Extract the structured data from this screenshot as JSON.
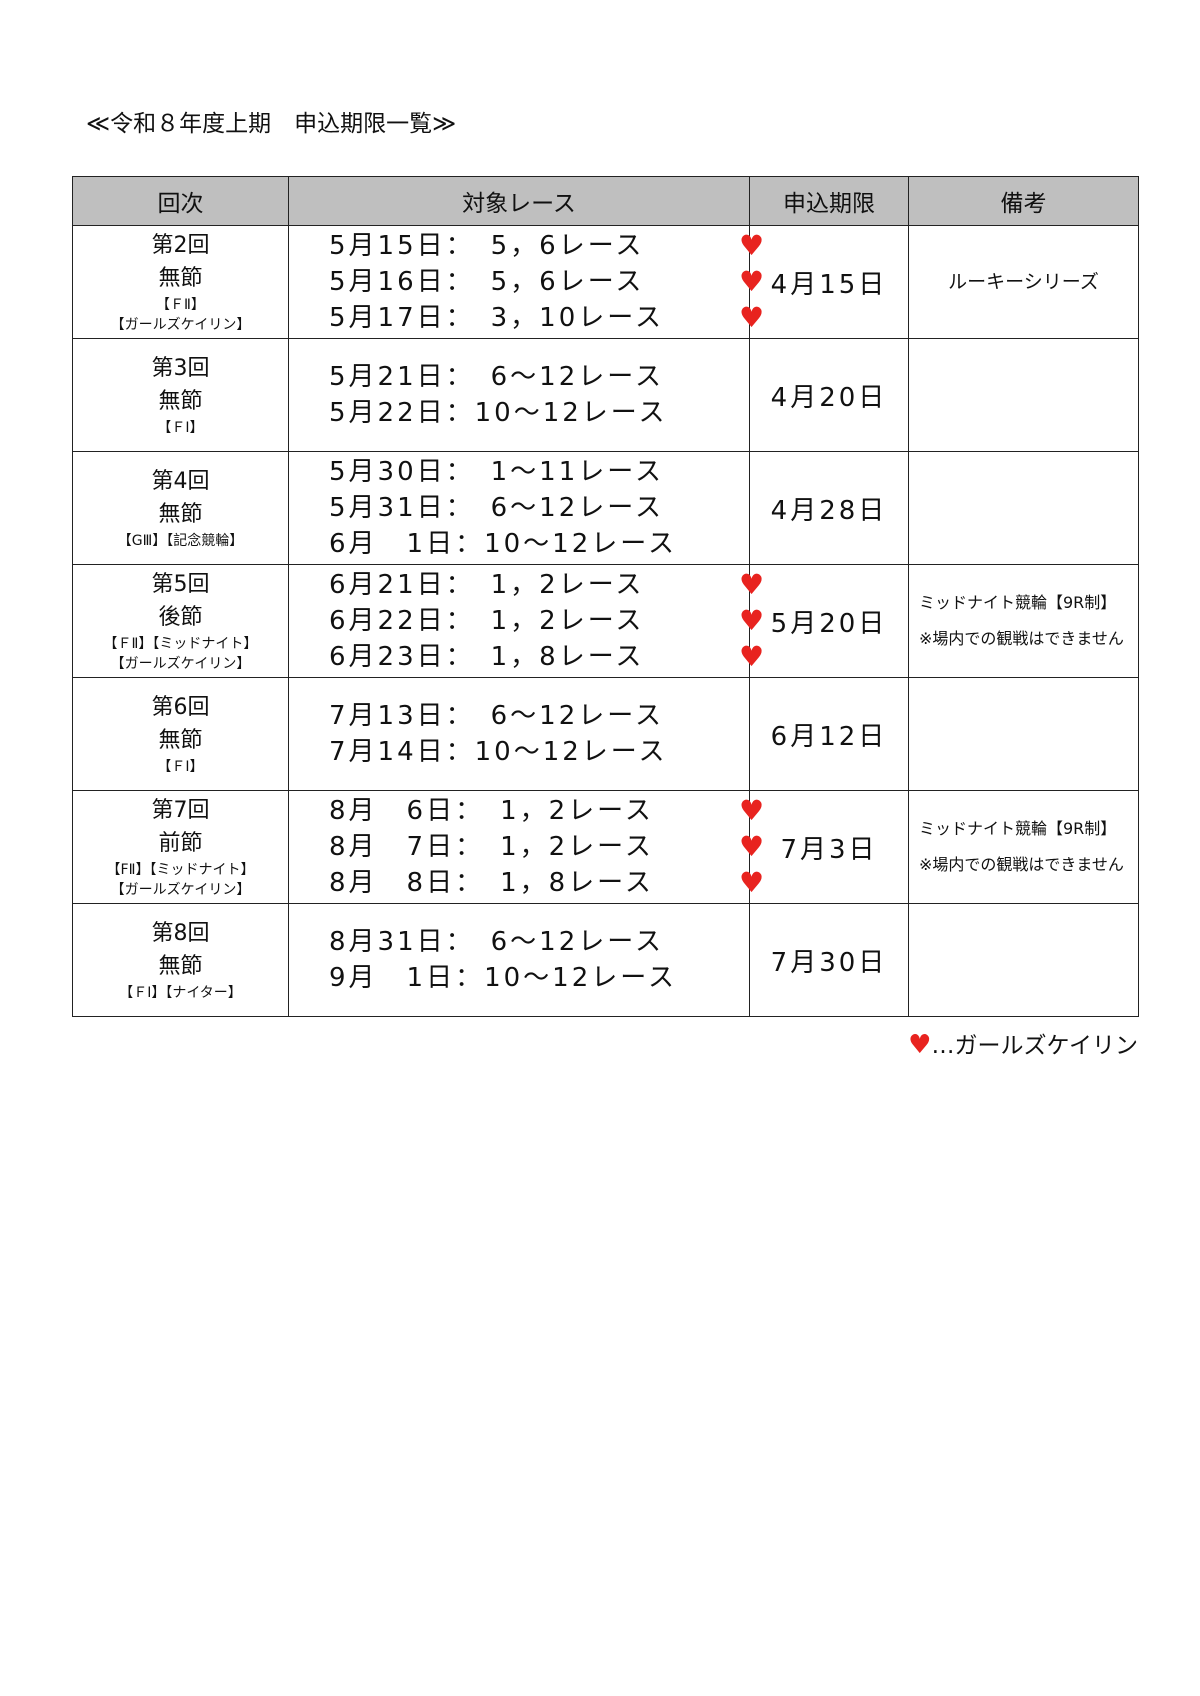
{
  "title": "≪令和８年度上期　申込期限一覧≫",
  "headers": [
    "回次",
    "対象レース",
    "申込期限",
    "備考"
  ],
  "heart_color": "#e8231f",
  "rows": [
    {
      "round": "第2回",
      "section": "無節",
      "tags": [
        "【ＦⅡ】",
        "【ガールズケイリン】"
      ],
      "races": [
        {
          "text": "5月15日：　5，6レース",
          "girls": true
        },
        {
          "text": "5月16日：　5，6レース",
          "girls": true
        },
        {
          "text": "5月17日：　3，10レース",
          "girls": true
        }
      ],
      "deadline": "4月15日",
      "notes": [
        "ルーキーシリーズ"
      ]
    },
    {
      "round": "第3回",
      "section": "無節",
      "tags": [
        "【ＦⅠ】"
      ],
      "races": [
        {
          "text": "5月21日：　6～12レース",
          "girls": false
        },
        {
          "text": "5月22日：10～12レース",
          "girls": false
        }
      ],
      "deadline": "4月20日",
      "notes": []
    },
    {
      "round": "第4回",
      "section": "無節",
      "tags": [
        "【GⅢ】【記念競輪】"
      ],
      "races": [
        {
          "text": "5月30日：　1～11レース",
          "girls": false
        },
        {
          "text": "5月31日：　6～12レース",
          "girls": false
        },
        {
          "text": "6月　1日：10～12レース",
          "girls": false
        }
      ],
      "deadline": "4月28日",
      "notes": []
    },
    {
      "round": "第5回",
      "section": "後節",
      "tags": [
        "【ＦⅡ】【ミッドナイト】",
        "【ガールズケイリン】"
      ],
      "races": [
        {
          "text": "6月21日：　1，2レース",
          "girls": true
        },
        {
          "text": "6月22日：　1，2レース",
          "girls": true
        },
        {
          "text": "6月23日：　1，8レース",
          "girls": true
        }
      ],
      "deadline": "5月20日",
      "notes": [
        "ミッドナイト競輪【9R制】",
        "※場内での観戦はできません"
      ]
    },
    {
      "round": "第6回",
      "section": "無節",
      "tags": [
        "【ＦⅠ】"
      ],
      "races": [
        {
          "text": "7月13日：　6～12レース",
          "girls": false
        },
        {
          "text": "7月14日：10～12レース",
          "girls": false
        }
      ],
      "deadline": "6月12日",
      "notes": []
    },
    {
      "round": "第7回",
      "section": "前節",
      "tags": [
        "【FⅡ】【ミッドナイト】",
        "【ガールズケイリン】"
      ],
      "races": [
        {
          "text": "8月　6日：　1，2レース",
          "girls": true
        },
        {
          "text": "8月　7日：　1，2レース",
          "girls": true
        },
        {
          "text": "8月　8日：　1，8レース",
          "girls": true
        }
      ],
      "deadline": "7月3日",
      "notes": [
        "ミッドナイト競輪【9R制】",
        "※場内での観戦はできません"
      ]
    },
    {
      "round": "第8回",
      "section": "無節",
      "tags": [
        "【ＦⅠ】【ナイター】"
      ],
      "races": [
        {
          "text": "8月31日：　6～12レース",
          "girls": false
        },
        {
          "text": "9月　1日：10～12レース",
          "girls": false
        }
      ],
      "deadline": "7月30日",
      "notes": []
    }
  ],
  "legend": {
    "icon": "heart-icon",
    "text": "…ガールズケイリン"
  }
}
